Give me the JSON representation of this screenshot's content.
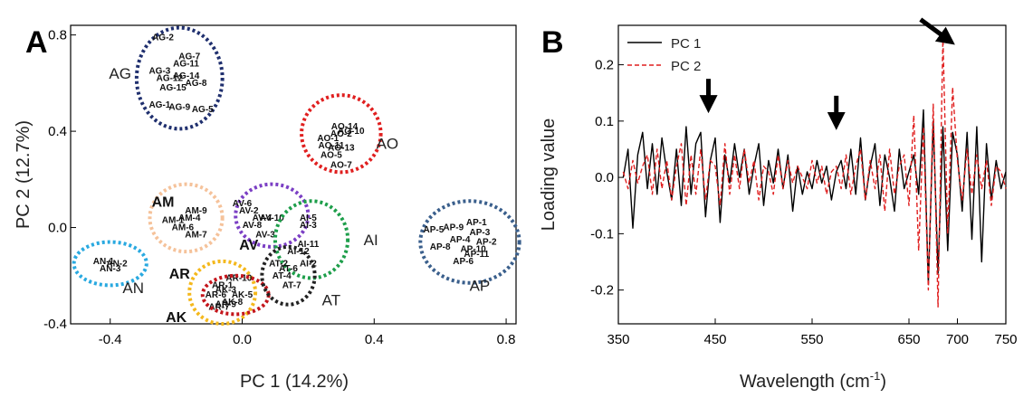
{
  "chart_data": [
    {
      "panel": "A",
      "type": "scatter",
      "xlabel": "PC 1 (14.2%)",
      "ylabel": "PC 2 (12.7%)",
      "xlim": [
        -0.52,
        0.83
      ],
      "ylim": [
        -0.4,
        0.84
      ],
      "xticks": [
        "-0.4",
        "0.0",
        "0.4",
        "0.8"
      ],
      "xtick_values": [
        -0.4,
        0.0,
        0.4,
        0.8
      ],
      "yticks": [
        "0.8",
        "0.4",
        "0.0",
        "-0.4"
      ],
      "ytick_values": [
        0.8,
        0.4,
        0.0,
        -0.4
      ],
      "groups": [
        {
          "name": "AG",
          "color": "#1f2f6e",
          "center": [
            -0.19,
            0.62
          ],
          "radius": [
            0.13,
            0.21
          ],
          "label_at": [
            -0.37,
            0.64
          ],
          "points": [
            [
              "AG-2",
              -0.24,
              0.79
            ],
            [
              "AG-7",
              -0.16,
              0.71
            ],
            [
              "AG-11",
              -0.17,
              0.68
            ],
            [
              "AG-3",
              -0.25,
              0.65
            ],
            [
              "AG-14",
              -0.17,
              0.63
            ],
            [
              "AG-12",
              -0.22,
              0.62
            ],
            [
              "AG-8",
              -0.14,
              0.6
            ],
            [
              "AG-15",
              -0.21,
              0.58
            ],
            [
              "AG-1",
              -0.25,
              0.51
            ],
            [
              "AG-9",
              -0.19,
              0.5
            ],
            [
              "AG-5",
              -0.12,
              0.49
            ]
          ]
        },
        {
          "name": "AO",
          "color": "#e01f1f",
          "center": [
            0.3,
            0.39
          ],
          "radius": [
            0.12,
            0.16
          ],
          "label_at": [
            0.44,
            0.35
          ],
          "points": [
            [
              "AO-14",
              0.31,
              0.42
            ],
            [
              "AO-10",
              0.33,
              0.4
            ],
            [
              "AO-2",
              0.3,
              0.39
            ],
            [
              "AO-1",
              0.26,
              0.37
            ],
            [
              "AO-11",
              0.27,
              0.34
            ],
            [
              "AO-13",
              0.3,
              0.33
            ],
            [
              "AO-5",
              0.27,
              0.3
            ],
            [
              "AO-7",
              0.3,
              0.26
            ]
          ]
        },
        {
          "name": "AM",
          "color": "#f5c29a",
          "center": [
            -0.17,
            0.04
          ],
          "radius": [
            0.11,
            0.14
          ],
          "label_at": [
            -0.24,
            0.11
          ],
          "points": [
            [
              "AM-9",
              -0.14,
              0.07
            ],
            [
              "AM-4",
              -0.16,
              0.04
            ],
            [
              "AM-1",
              -0.21,
              0.03
            ],
            [
              "AM-6",
              -0.18,
              0.0
            ],
            [
              "AM-7",
              -0.14,
              -0.03
            ]
          ]
        },
        {
          "name": "AV",
          "color": "#7b3fc4",
          "center": [
            0.09,
            0.05
          ],
          "radius": [
            0.11,
            0.13
          ],
          "label_at": [
            0.02,
            -0.07
          ],
          "points": [
            [
              "AV-6",
              0.0,
              0.1
            ],
            [
              "AV-2",
              0.02,
              0.07
            ],
            [
              "AV-4",
              0.06,
              0.04
            ],
            [
              "AV-10",
              0.09,
              0.04
            ],
            [
              "AV-8",
              0.03,
              0.01
            ],
            [
              "AV-3",
              0.07,
              -0.03
            ]
          ]
        },
        {
          "name": "AI",
          "color": "#1d9e4a",
          "center": [
            0.21,
            -0.05
          ],
          "radius": [
            0.11,
            0.16
          ],
          "label_at": [
            0.39,
            -0.05
          ],
          "points": [
            [
              "AI-5",
              0.2,
              0.04
            ],
            [
              "AI-3",
              0.2,
              0.01
            ],
            [
              "AI-11",
              0.2,
              -0.07
            ],
            [
              "AI-12",
              0.17,
              -0.1
            ],
            [
              "AI-2",
              0.2,
              -0.15
            ]
          ]
        },
        {
          "name": "AP",
          "color": "#3a5f8c",
          "center": [
            0.69,
            -0.06
          ],
          "radius": [
            0.15,
            0.17
          ],
          "label_at": [
            0.72,
            -0.24
          ],
          "points": [
            [
              "AP-1",
              0.71,
              0.02
            ],
            [
              "AP-9",
              0.64,
              0.0
            ],
            [
              "AP-5",
              0.58,
              -0.01
            ],
            [
              "AP-3",
              0.72,
              -0.02
            ],
            [
              "AP-2",
              0.74,
              -0.06
            ],
            [
              "AP-4",
              0.66,
              -0.05
            ],
            [
              "AP-8",
              0.6,
              -0.08
            ],
            [
              "AP-10",
              0.7,
              -0.09
            ],
            [
              "AP-11",
              0.71,
              -0.11
            ],
            [
              "AP-6",
              0.67,
              -0.14
            ]
          ]
        },
        {
          "name": "AN",
          "color": "#29a9e0",
          "center": [
            -0.4,
            -0.15
          ],
          "radius": [
            0.11,
            0.09
          ],
          "label_at": [
            -0.33,
            -0.25
          ],
          "points": [
            [
              "AN-1",
              -0.42,
              -0.14
            ],
            [
              "AN-2",
              -0.38,
              -0.15
            ],
            [
              "AN-3",
              -0.4,
              -0.17
            ]
          ]
        },
        {
          "name": "AR",
          "color": "#f4b81c",
          "center": [
            -0.06,
            -0.27
          ],
          "radius": [
            0.1,
            0.13
          ],
          "label_at": [
            -0.19,
            -0.19
          ],
          "points": [
            [
              "AR-10",
              -0.01,
              -0.21
            ],
            [
              "AR-1",
              -0.06,
              -0.24
            ],
            [
              "AR-6",
              -0.08,
              -0.28
            ],
            [
              "AR-7",
              -0.07,
              -0.33
            ],
            [
              "AR-9",
              -0.05,
              -0.32
            ]
          ]
        },
        {
          "name": "AK",
          "color": "#c4161c",
          "center": [
            -0.02,
            -0.28
          ],
          "radius": [
            0.1,
            0.08
          ],
          "label_at": [
            -0.2,
            -0.37
          ],
          "points": [
            [
              "AK-3",
              -0.05,
              -0.26
            ],
            [
              "AK-5",
              0.0,
              -0.28
            ],
            [
              "AK-8",
              -0.03,
              -0.31
            ]
          ]
        },
        {
          "name": "AT",
          "color": "#222222",
          "center": [
            0.14,
            -0.2
          ],
          "radius": [
            0.08,
            0.12
          ],
          "label_at": [
            0.27,
            -0.3
          ],
          "points": [
            [
              "AT-2",
              0.11,
              -0.15
            ],
            [
              "AT-6",
              0.14,
              -0.17
            ],
            [
              "AT-4",
              0.12,
              -0.2
            ],
            [
              "AT-7",
              0.15,
              -0.24
            ]
          ]
        }
      ]
    },
    {
      "panel": "B",
      "type": "line",
      "xlabel": "Wavelength (cm",
      "xlabel_sup": "-1",
      "xlabel_end": ")",
      "ylabel": "Loading value",
      "xlim": [
        350,
        750
      ],
      "ylim": [
        -0.26,
        0.27
      ],
      "xticks": [
        "350",
        "450",
        "550",
        "650",
        "700",
        "750"
      ],
      "xtick_values": [
        350,
        450,
        550,
        650,
        700,
        750
      ],
      "yticks": [
        "0.2",
        "0.1",
        "0.0",
        "-0.1",
        "-0.2"
      ],
      "ytick_values": [
        0.2,
        0.1,
        0.0,
        -0.1,
        -0.2
      ],
      "legend": [
        {
          "name": "PC 1",
          "color": "#000000",
          "dash": "solid"
        },
        {
          "name": "PC 2",
          "color": "#e01f1f",
          "dash": "dashed"
        }
      ],
      "arrows": [
        {
          "x": 443,
          "y": 0.13,
          "direction": "down"
        },
        {
          "x": 575,
          "y": 0.1,
          "direction": "down"
        },
        {
          "x": 690,
          "y": 0.245,
          "direction": "down-right"
        }
      ],
      "series": [
        {
          "name": "PC 1",
          "x": [
            355,
            360,
            365,
            370,
            375,
            380,
            385,
            390,
            395,
            400,
            405,
            410,
            415,
            420,
            425,
            430,
            435,
            440,
            445,
            450,
            455,
            460,
            465,
            470,
            475,
            480,
            485,
            490,
            495,
            500,
            505,
            510,
            515,
            520,
            525,
            530,
            535,
            540,
            545,
            550,
            555,
            560,
            565,
            570,
            575,
            580,
            585,
            590,
            595,
            600,
            605,
            610,
            615,
            620,
            625,
            630,
            635,
            640,
            645,
            650,
            655,
            660,
            665,
            670,
            675,
            680,
            685,
            690,
            695,
            700,
            705,
            710,
            715,
            720,
            725,
            730,
            735,
            740,
            745,
            750
          ],
          "values": [
            0.0,
            0.05,
            -0.09,
            0.04,
            0.08,
            -0.02,
            0.06,
            -0.03,
            0.07,
            0.01,
            -0.04,
            0.05,
            -0.05,
            0.09,
            -0.03,
            0.06,
            0.08,
            -0.07,
            0.03,
            0.07,
            -0.08,
            0.04,
            -0.01,
            0.06,
            0.0,
            0.05,
            -0.03,
            0.02,
            0.06,
            -0.05,
            0.03,
            -0.01,
            0.05,
            -0.02,
            0.04,
            -0.06,
            0.02,
            -0.03,
            0.01,
            -0.02,
            0.03,
            -0.01,
            0.02,
            -0.04,
            0.01,
            0.03,
            -0.02,
            0.05,
            -0.03,
            0.07,
            -0.04,
            0.02,
            0.06,
            -0.05,
            0.04,
            0.0,
            -0.06,
            0.05,
            -0.02,
            0.01,
            0.04,
            -0.03,
            0.12,
            -0.19,
            0.1,
            -0.17,
            0.09,
            -0.13,
            0.08,
            0.04,
            -0.06,
            0.08,
            -0.11,
            0.09,
            -0.15,
            0.06,
            -0.04,
            0.03,
            -0.02,
            0.01
          ]
        },
        {
          "name": "PC 2",
          "x": [
            355,
            360,
            365,
            370,
            375,
            380,
            385,
            390,
            395,
            400,
            405,
            410,
            415,
            420,
            425,
            430,
            435,
            440,
            445,
            450,
            455,
            460,
            465,
            470,
            475,
            480,
            485,
            490,
            495,
            500,
            505,
            510,
            515,
            520,
            525,
            530,
            535,
            540,
            545,
            550,
            555,
            560,
            565,
            570,
            575,
            580,
            585,
            590,
            595,
            600,
            605,
            610,
            615,
            620,
            625,
            630,
            635,
            640,
            645,
            650,
            655,
            660,
            665,
            670,
            675,
            680,
            685,
            690,
            695,
            700,
            705,
            710,
            715,
            720,
            725,
            730,
            735,
            740,
            745,
            750
          ],
          "values": [
            0.01,
            -0.02,
            0.03,
            -0.01,
            0.02,
            0.04,
            -0.03,
            0.05,
            -0.02,
            0.03,
            -0.04,
            0.02,
            0.06,
            -0.05,
            0.04,
            -0.03,
            0.05,
            -0.04,
            0.03,
            0.02,
            -0.05,
            0.06,
            -0.03,
            0.04,
            -0.02,
            0.05,
            -0.01,
            0.03,
            -0.04,
            0.02,
            0.01,
            -0.03,
            0.04,
            -0.02,
            0.03,
            -0.01,
            0.02,
            0.0,
            -0.02,
            0.03,
            -0.01,
            0.02,
            -0.03,
            0.01,
            0.02,
            -0.02,
            0.04,
            -0.03,
            0.02,
            0.05,
            -0.04,
            0.03,
            -0.02,
            0.04,
            -0.06,
            0.05,
            -0.03,
            0.02,
            0.04,
            -0.05,
            0.11,
            -0.13,
            0.09,
            -0.2,
            0.13,
            -0.23,
            0.25,
            -0.1,
            0.16,
            0.03,
            -0.04,
            0.05,
            -0.03,
            0.04,
            -0.02,
            0.03,
            -0.05,
            0.02,
            0.01,
            -0.02
          ]
        }
      ]
    }
  ]
}
